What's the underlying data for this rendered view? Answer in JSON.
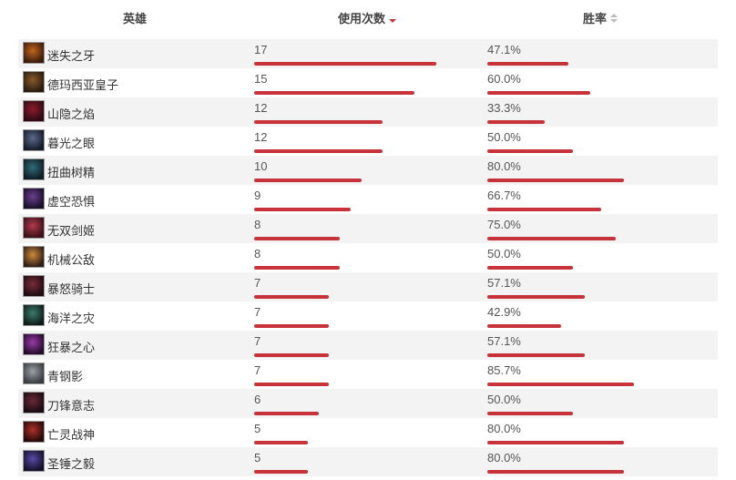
{
  "header": {
    "hero": "英雄",
    "uses": "使用次数",
    "winrate": "胜率"
  },
  "colors": {
    "bar": "#c8323a",
    "alt_row": "#f3f3f3"
  },
  "max_uses": 17,
  "rows": [
    {
      "name": "迷失之牙",
      "uses": "17",
      "winrate": "47.1%",
      "w": 47.1,
      "c1": "#c0651c",
      "c2": "#3b1d0c"
    },
    {
      "name": "德玛西亚皇子",
      "uses": "15",
      "winrate": "60.0%",
      "w": 60.0,
      "c1": "#8a5b2b",
      "c2": "#2a1a0e"
    },
    {
      "name": "山隐之焰",
      "uses": "12",
      "winrate": "33.3%",
      "w": 33.3,
      "c1": "#8e1a2a",
      "c2": "#2c0a12"
    },
    {
      "name": "暮光之眼",
      "uses": "12",
      "winrate": "50.0%",
      "w": 50.0,
      "c1": "#5a6b8c",
      "c2": "#151b2a"
    },
    {
      "name": "扭曲树精",
      "uses": "10",
      "winrate": "80.0%",
      "w": 80.0,
      "c1": "#2f6c7a",
      "c2": "#0e1d24"
    },
    {
      "name": "虚空恐惧",
      "uses": "9",
      "winrate": "66.7%",
      "w": 66.7,
      "c1": "#6a3f8e",
      "c2": "#1a0f2a"
    },
    {
      "name": "无双剑姬",
      "uses": "8",
      "winrate": "75.0%",
      "w": 75.0,
      "c1": "#b03a4a",
      "c2": "#3a1118"
    },
    {
      "name": "机械公敌",
      "uses": "8",
      "winrate": "50.0%",
      "w": 50.0,
      "c1": "#d08a3a",
      "c2": "#2e1f16"
    },
    {
      "name": "暴怒骑士",
      "uses": "7",
      "winrate": "57.1%",
      "w": 57.1,
      "c1": "#7a2a3a",
      "c2": "#1e0c12"
    },
    {
      "name": "海洋之灾",
      "uses": "7",
      "winrate": "42.9%",
      "w": 42.9,
      "c1": "#3a7a6a",
      "c2": "#0f1d1a"
    },
    {
      "name": "狂暴之心",
      "uses": "7",
      "winrate": "57.1%",
      "w": 57.1,
      "c1": "#9a3aa8",
      "c2": "#240c2a"
    },
    {
      "name": "青钢影",
      "uses": "7",
      "winrate": "85.7%",
      "w": 85.7,
      "c1": "#9aa0a4",
      "c2": "#3a3c40"
    },
    {
      "name": "刀锋意志",
      "uses": "6",
      "winrate": "50.0%",
      "w": 50.0,
      "c1": "#6a2a3a",
      "c2": "#1a0a12"
    },
    {
      "name": "亡灵战神",
      "uses": "5",
      "winrate": "80.0%",
      "w": 80.0,
      "c1": "#b0302a",
      "c2": "#240a08"
    },
    {
      "name": "圣锤之毅",
      "uses": "5",
      "winrate": "80.0%",
      "w": 80.0,
      "c1": "#5a4aa8",
      "c2": "#14102a"
    }
  ]
}
